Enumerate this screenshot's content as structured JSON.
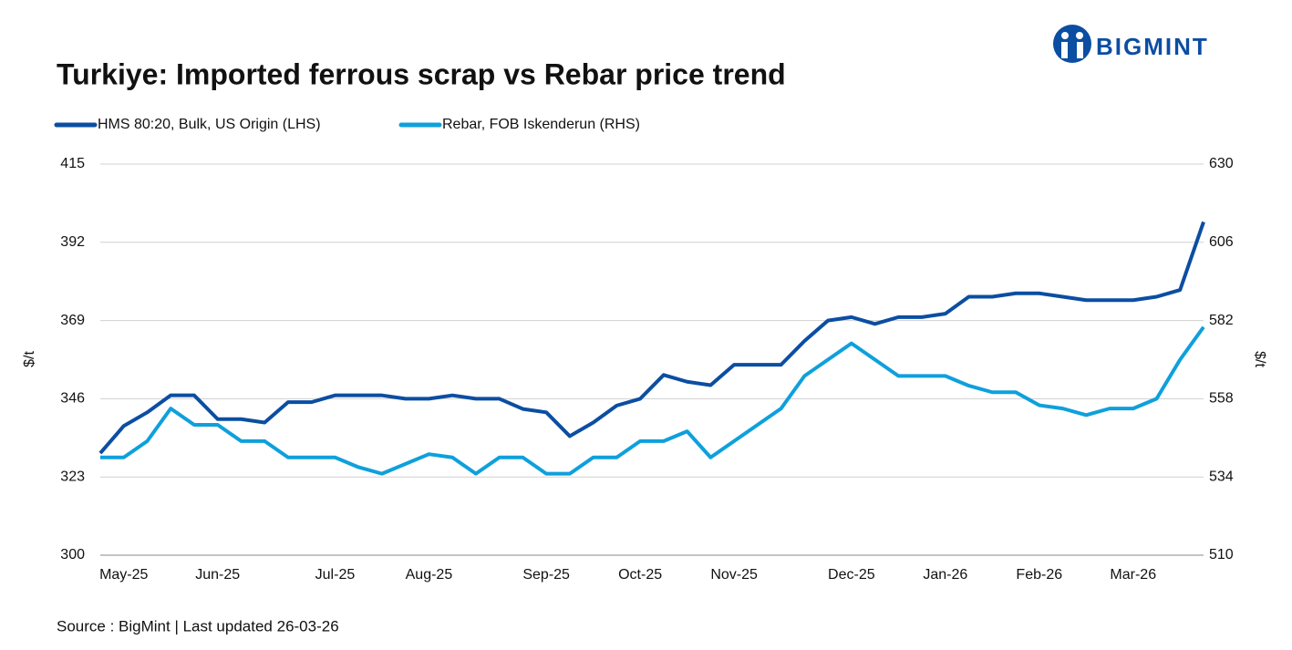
{
  "brand": "BIGMINT",
  "chart_data": {
    "type": "line",
    "title": "Turkiye: Imported ferrous scrap vs Rebar price trend",
    "source": "Source : BigMint | Last updated 26-03-26",
    "y_label": "$/t",
    "y2_label": "$/t",
    "categories": [
      null,
      "May-25",
      null,
      null,
      null,
      "Jun-25",
      null,
      null,
      null,
      null,
      "Jul-25",
      null,
      null,
      null,
      "Aug-25",
      null,
      null,
      null,
      null,
      "Sep-25",
      null,
      null,
      null,
      "Oct-25",
      null,
      null,
      null,
      "Nov-25",
      null,
      null,
      null,
      null,
      "Dec-25",
      null,
      null,
      null,
      "Jan-26",
      null,
      null,
      null,
      "Feb-26",
      null,
      null,
      null,
      "Mar-26",
      null,
      null,
      null
    ],
    "ylim": [
      300,
      415
    ],
    "yticks": [
      300,
      323,
      346,
      369,
      392,
      415
    ],
    "y2lim": [
      510,
      630
    ],
    "y2ticks": [
      510,
      534,
      558,
      582,
      606,
      630
    ],
    "grid": true,
    "series": [
      {
        "name": "HMS 80:20, Bulk, US Origin (LHS)",
        "color": "#0b4ea2",
        "values": [
          330,
          338,
          342,
          347,
          347,
          340,
          340,
          339,
          345,
          345,
          347,
          347,
          347,
          346,
          346,
          347,
          346,
          346,
          343,
          342,
          335,
          339,
          344,
          346,
          353,
          351,
          350,
          356,
          356,
          356,
          363,
          369,
          370,
          368,
          370,
          370,
          371,
          376,
          376,
          377,
          377,
          376,
          375,
          375,
          375,
          376,
          378,
          398
        ]
      },
      {
        "name": "Rebar, FOB Iskenderun (RHS)",
        "color": "#0ea0dc",
        "axis": "y2",
        "values": [
          540,
          540,
          545,
          555,
          550,
          550,
          545,
          545,
          540,
          540,
          540,
          537,
          535,
          538,
          541,
          540,
          535,
          540,
          540,
          535,
          535,
          540,
          540,
          545,
          545,
          548,
          540,
          545,
          550,
          555,
          565,
          570,
          575,
          570,
          565,
          565,
          565,
          562,
          560,
          560,
          556,
          555,
          553,
          555,
          555,
          558,
          570,
          580
        ]
      }
    ]
  }
}
